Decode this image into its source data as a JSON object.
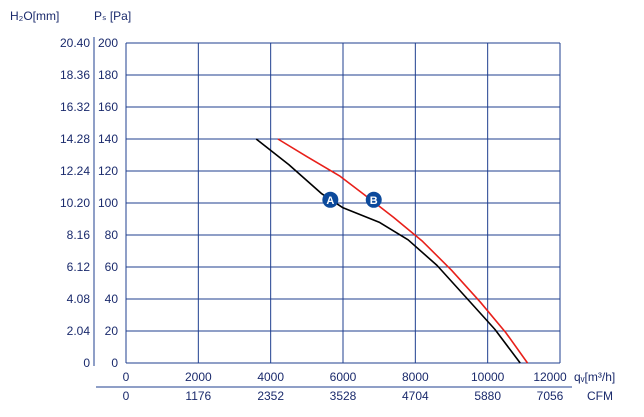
{
  "chart_data": {
    "type": "line",
    "title": "",
    "y_left_header": "H₂O[mm]",
    "y_right_header": "Pₛ [Pa]",
    "x_unit_top": "qᵥ[m³/h]",
    "x_unit_bottom": "CFM",
    "xlim": [
      0,
      12000
    ],
    "ylim": [
      0,
      200
    ],
    "grid": true,
    "x_ticks_top": [
      "0",
      "2000",
      "4000",
      "6000",
      "8000",
      "10000",
      "12000"
    ],
    "x_ticks_bottom": [
      "0",
      "1176",
      "2352",
      "3528",
      "4704",
      "5880",
      "7056"
    ],
    "y_ticks_pa": [
      "0",
      "20",
      "40",
      "60",
      "80",
      "100",
      "120",
      "140",
      "160",
      "180",
      "200"
    ],
    "y_ticks_mm": [
      "0",
      "2.04",
      "4.08",
      "6.12",
      "8.16",
      "10.20",
      "12.24",
      "14.28",
      "16.32",
      "18.36",
      "20.40"
    ],
    "series": [
      {
        "name": "A",
        "color": "#000000",
        "x": [
          3600,
          4500,
          5400,
          6000,
          7000,
          7800,
          8600,
          9400,
          10200,
          10900
        ],
        "y": [
          140,
          124,
          106,
          97,
          88,
          77,
          61,
          41,
          21,
          0
        ]
      },
      {
        "name": "B",
        "color": "#e8201a",
        "x": [
          4200,
          5000,
          5900,
          6600,
          7400,
          8200,
          9000,
          9800,
          10500,
          11100
        ],
        "y": [
          140,
          129,
          117,
          105,
          91,
          76,
          58,
          38,
          19,
          0
        ]
      }
    ],
    "labels": [
      {
        "text": "A",
        "x": 5650,
        "y": 102,
        "color": "#0c4a9c"
      },
      {
        "text": "B",
        "x": 6850,
        "y": 102,
        "color": "#0c4a9c"
      }
    ]
  }
}
